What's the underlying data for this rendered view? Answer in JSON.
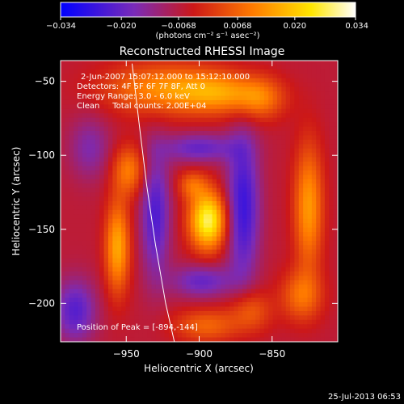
{
  "chart_data": {
    "type": "heatmap",
    "title": "Reconstructed RHESSI Image",
    "xlabel": "Heliocentric X (arcsec)",
    "ylabel": "Heliocentric Y (arcsec)",
    "xlim": [
      -995,
      -805
    ],
    "ylim": [
      -226,
      -36
    ],
    "x_ticks": [
      -950,
      -900,
      -850
    ],
    "x_tick_labels": [
      "−950",
      "−900",
      "−850"
    ],
    "y_ticks": [
      -50,
      -100,
      -150,
      -200
    ],
    "y_tick_labels": [
      "−50",
      "−100",
      "−150",
      "−200"
    ],
    "info_lines": [
      "2-Jun-2007 15:07:12.000 to 15:12:10.000",
      "Detectors: 4F 5F 6F 7F 8F, Att 0",
      "Energy Range: 3.0 - 6.0 keV",
      "Clean     Total counts: 2.00E+04"
    ],
    "peak_label": "Position of Peak = [-894,-144]",
    "peak": [
      -894,
      -144
    ],
    "colorbar": {
      "range": [
        -0.034,
        0.034
      ],
      "tick_values": [
        -0.034,
        -0.02,
        -0.0068,
        0.0068,
        0.02,
        0.034
      ],
      "tick_labels": [
        "−0.034",
        "−0.020",
        "−0.0068",
        "0.0068",
        "0.020",
        "0.034"
      ],
      "unit_label": "(photons cm⁻² s⁻¹ asec⁻²)",
      "colors": [
        "#0000ff",
        "#7a2bb8",
        "#cc1818",
        "#ff7a00",
        "#ffe600",
        "#ffffff"
      ]
    },
    "limb_curve": [
      [
        -946,
        -38
      ],
      [
        -941,
        -80
      ],
      [
        -936,
        -120
      ],
      [
        -930,
        -160
      ],
      [
        -923,
        -200
      ],
      [
        -917,
        -226
      ]
    ],
    "sources": [
      {
        "x": -894,
        "y": -144,
        "amplitude": 0.034,
        "sigma_x": 9,
        "sigma_y": 14
      },
      {
        "x": -905,
        "y": -120,
        "amplitude": 0.012,
        "sigma_x": 7,
        "sigma_y": 7
      },
      {
        "x": -956,
        "y": -162,
        "amplitude": 0.022,
        "sigma_x": 6,
        "sigma_y": 22
      },
      {
        "x": -948,
        "y": -110,
        "amplitude": 0.016,
        "sigma_x": 8,
        "sigma_y": 12
      },
      {
        "x": -925,
        "y": -55,
        "amplitude": 0.018,
        "sigma_x": 28,
        "sigma_y": 12
      },
      {
        "x": -885,
        "y": -58,
        "amplitude": 0.016,
        "sigma_x": 20,
        "sigma_y": 10
      },
      {
        "x": -858,
        "y": -62,
        "amplitude": 0.013,
        "sigma_x": 12,
        "sigma_y": 10
      },
      {
        "x": -825,
        "y": -135,
        "amplitude": 0.02,
        "sigma_x": 7,
        "sigma_y": 30
      },
      {
        "x": -830,
        "y": -195,
        "amplitude": 0.014,
        "sigma_x": 10,
        "sigma_y": 12
      },
      {
        "x": -865,
        "y": -205,
        "amplitude": 0.012,
        "sigma_x": 10,
        "sigma_y": 10
      },
      {
        "x": -895,
        "y": -215,
        "amplitude": 0.013,
        "sigma_x": 16,
        "sigma_y": 8
      },
      {
        "x": -870,
        "y": -135,
        "amplitude": -0.02,
        "sigma_x": 8,
        "sigma_y": 35
      },
      {
        "x": -930,
        "y": -140,
        "amplitude": -0.017,
        "sigma_x": 7,
        "sigma_y": 30
      },
      {
        "x": -900,
        "y": -95,
        "amplitude": -0.014,
        "sigma_x": 18,
        "sigma_y": 7
      },
      {
        "x": -985,
        "y": -205,
        "amplitude": -0.016,
        "sigma_x": 10,
        "sigma_y": 15
      },
      {
        "x": -975,
        "y": -95,
        "amplitude": -0.01,
        "sigma_x": 10,
        "sigma_y": 15
      },
      {
        "x": -898,
        "y": -185,
        "amplitude": -0.014,
        "sigma_x": 15,
        "sigma_y": 8
      }
    ]
  },
  "footer_timestamp": "25-Jul-2013 06:53"
}
